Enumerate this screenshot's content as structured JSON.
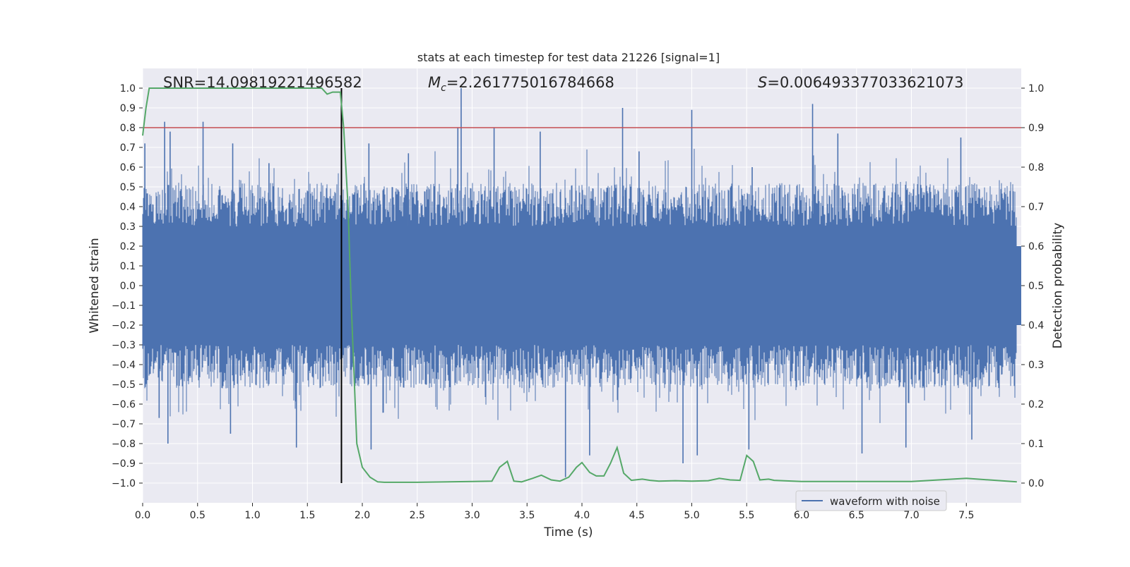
{
  "chart_data": {
    "type": "line",
    "title": "stats at each timestep for test data 21226 [signal=1]",
    "xlabel": "Time (s)",
    "ylabel_left": "Whitened strain",
    "ylabel_right": "Detection probability",
    "xlim": [
      0.0,
      8.0
    ],
    "ylim_left": [
      -1.1,
      1.1
    ],
    "ylim_right": [
      -0.05,
      1.05
    ],
    "x_ticks": [
      0.0,
      0.5,
      1.0,
      1.5,
      2.0,
      2.5,
      3.0,
      3.5,
      4.0,
      4.5,
      5.0,
      5.5,
      6.0,
      6.5,
      7.0,
      7.5
    ],
    "x_tick_labels": [
      "0.0",
      "0.5",
      "1.0",
      "1.5",
      "2.0",
      "2.5",
      "3.0",
      "3.5",
      "4.0",
      "4.5",
      "5.0",
      "5.5",
      "6.0",
      "6.5",
      "7.0",
      "7.5"
    ],
    "y_left_ticks": [
      -1.0,
      -0.9,
      -0.8,
      -0.7,
      -0.6,
      -0.5,
      -0.4,
      -0.3,
      -0.2,
      -0.1,
      0.0,
      0.1,
      0.2,
      0.3,
      0.4,
      0.5,
      0.6,
      0.7,
      0.8,
      0.9,
      1.0
    ],
    "y_left_tick_labels": [
      "−1.0",
      "−0.9",
      "−0.8",
      "−0.7",
      "−0.6",
      "−0.5",
      "−0.4",
      "−0.3",
      "−0.2",
      "−0.1",
      "0.0",
      "0.1",
      "0.2",
      "0.3",
      "0.4",
      "0.5",
      "0.6",
      "0.7",
      "0.8",
      "0.9",
      "1.0"
    ],
    "y_right_ticks": [
      0.0,
      0.1,
      0.2,
      0.3,
      0.4,
      0.5,
      0.6,
      0.7,
      0.8,
      0.9,
      1.0
    ],
    "y_right_tick_labels": [
      "0.0",
      "0.1",
      "0.2",
      "0.3",
      "0.4",
      "0.5",
      "0.6",
      "0.7",
      "0.8",
      "0.9",
      "1.0"
    ],
    "annotations": {
      "snr": "SNR=14.09819221496582",
      "mc_symbol": "M",
      "mc_subscript": "c",
      "mc_value": "=2.261775016784668",
      "s_symbol": "S",
      "s_value": "=0.006493377033621073"
    },
    "threshold_line": {
      "y": 0.8,
      "color": "#c44e52"
    },
    "event_marker": {
      "x": 1.81,
      "y_range": [
        -1.0,
        1.0
      ],
      "color": "#000000"
    },
    "waveform": {
      "name": "waveform with noise",
      "color": "#4c72b0",
      "dense_band": [
        -0.2,
        0.2
      ],
      "peak_spikes": [
        {
          "x": 0.02,
          "y": 0.72
        },
        {
          "x": 0.2,
          "y": 0.83
        },
        {
          "x": 0.25,
          "y": 0.78
        },
        {
          "x": 0.55,
          "y": 0.83
        },
        {
          "x": 0.82,
          "y": 0.72
        },
        {
          "x": 1.15,
          "y": 0.62
        },
        {
          "x": 2.06,
          "y": 0.72
        },
        {
          "x": 2.42,
          "y": 0.67
        },
        {
          "x": 2.87,
          "y": 0.8
        },
        {
          "x": 2.9,
          "y": 1.0
        },
        {
          "x": 3.2,
          "y": 0.8
        },
        {
          "x": 3.62,
          "y": 0.78
        },
        {
          "x": 4.37,
          "y": 0.9
        },
        {
          "x": 4.52,
          "y": 0.68
        },
        {
          "x": 5.0,
          "y": 0.89
        },
        {
          "x": 5.55,
          "y": 0.6
        },
        {
          "x": 6.1,
          "y": 0.92
        },
        {
          "x": 6.33,
          "y": 0.77
        },
        {
          "x": 7.45,
          "y": 0.75
        }
      ],
      "trough_spikes": [
        {
          "x": 0.15,
          "y": -0.67
        },
        {
          "x": 0.23,
          "y": -0.8
        },
        {
          "x": 0.8,
          "y": -0.75
        },
        {
          "x": 1.4,
          "y": -0.82
        },
        {
          "x": 2.08,
          "y": -0.83
        },
        {
          "x": 3.85,
          "y": -0.97
        },
        {
          "x": 4.07,
          "y": -0.86
        },
        {
          "x": 4.92,
          "y": -0.9
        },
        {
          "x": 5.05,
          "y": -0.86
        },
        {
          "x": 5.52,
          "y": -0.83
        },
        {
          "x": 6.55,
          "y": -0.85
        },
        {
          "x": 6.95,
          "y": -0.82
        },
        {
          "x": 7.55,
          "y": -0.78
        }
      ]
    },
    "detection_probability": {
      "color": "#55a868",
      "x": [
        0.0,
        0.03,
        0.06,
        0.12,
        0.5,
        1.0,
        1.5,
        1.63,
        1.68,
        1.73,
        1.8,
        1.83,
        1.87,
        1.9,
        1.95,
        2.0,
        2.07,
        2.14,
        2.2,
        2.5,
        3.0,
        3.18,
        3.25,
        3.32,
        3.38,
        3.45,
        3.55,
        3.63,
        3.72,
        3.8,
        3.88,
        3.95,
        4.0,
        4.07,
        4.13,
        4.2,
        4.26,
        4.32,
        4.38,
        4.45,
        4.55,
        4.62,
        4.7,
        4.85,
        5.0,
        5.15,
        5.25,
        5.35,
        5.44,
        5.5,
        5.56,
        5.62,
        5.7,
        5.75,
        6.0,
        6.5,
        7.0,
        7.5,
        7.96
      ],
      "y": [
        0.88,
        0.95,
        1.0,
        1.0,
        1.0,
        1.0,
        1.0,
        1.0,
        0.985,
        0.99,
        0.99,
        0.9,
        0.7,
        0.45,
        0.1,
        0.04,
        0.015,
        0.003,
        0.002,
        0.002,
        0.004,
        0.005,
        0.04,
        0.055,
        0.005,
        0.003,
        0.012,
        0.02,
        0.008,
        0.005,
        0.015,
        0.04,
        0.052,
        0.027,
        0.018,
        0.018,
        0.05,
        0.09,
        0.025,
        0.007,
        0.01,
        0.007,
        0.005,
        0.006,
        0.005,
        0.006,
        0.012,
        0.008,
        0.007,
        0.07,
        0.055,
        0.008,
        0.01,
        0.007,
        0.004,
        0.004,
        0.004,
        0.012,
        0.003
      ]
    },
    "legend": {
      "location": "lower-right"
    }
  }
}
